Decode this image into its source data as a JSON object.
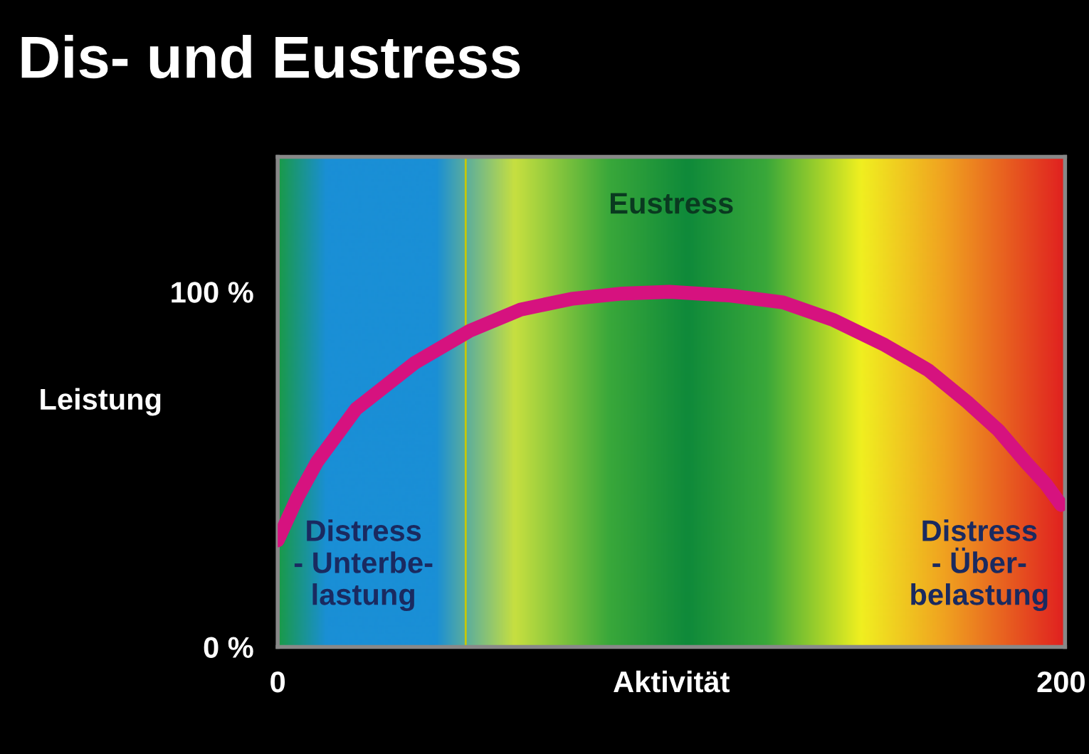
{
  "chart_data": {
    "type": "line",
    "title": "Dis- und Eustress",
    "xlabel": "Aktivität",
    "ylabel": "Leistung",
    "x": [
      0,
      5,
      10,
      20,
      35,
      49,
      62,
      75,
      88,
      100,
      115,
      129,
      142,
      155,
      166,
      176,
      184,
      191,
      196,
      200
    ],
    "series": [
      {
        "color": "#d6127f",
        "values": [
          30,
          42,
          52,
          67,
          80,
          89,
          95,
          98,
          99.5,
          100,
          99,
          97,
          92,
          85,
          78,
          69,
          61,
          52,
          46,
          40
        ]
      }
    ],
    "xlim": [
      0,
      201
    ],
    "ylim": [
      0,
      138
    ],
    "xticks": [
      0,
      200
    ],
    "yticks": [
      {
        "value": 0,
        "label": "0 %"
      },
      {
        "value": 100,
        "label": "100 %"
      }
    ],
    "ref_lines": [
      {
        "axis": "x",
        "value": 48,
        "color": "#c8c800"
      }
    ],
    "annotations": [
      "Eustress",
      "Distress\n- Unterbe-\nlastung",
      "Distress\n- Über-\nbelastung"
    ],
    "grid": false,
    "legend": false,
    "marker": "none",
    "line_style": "solid"
  }
}
